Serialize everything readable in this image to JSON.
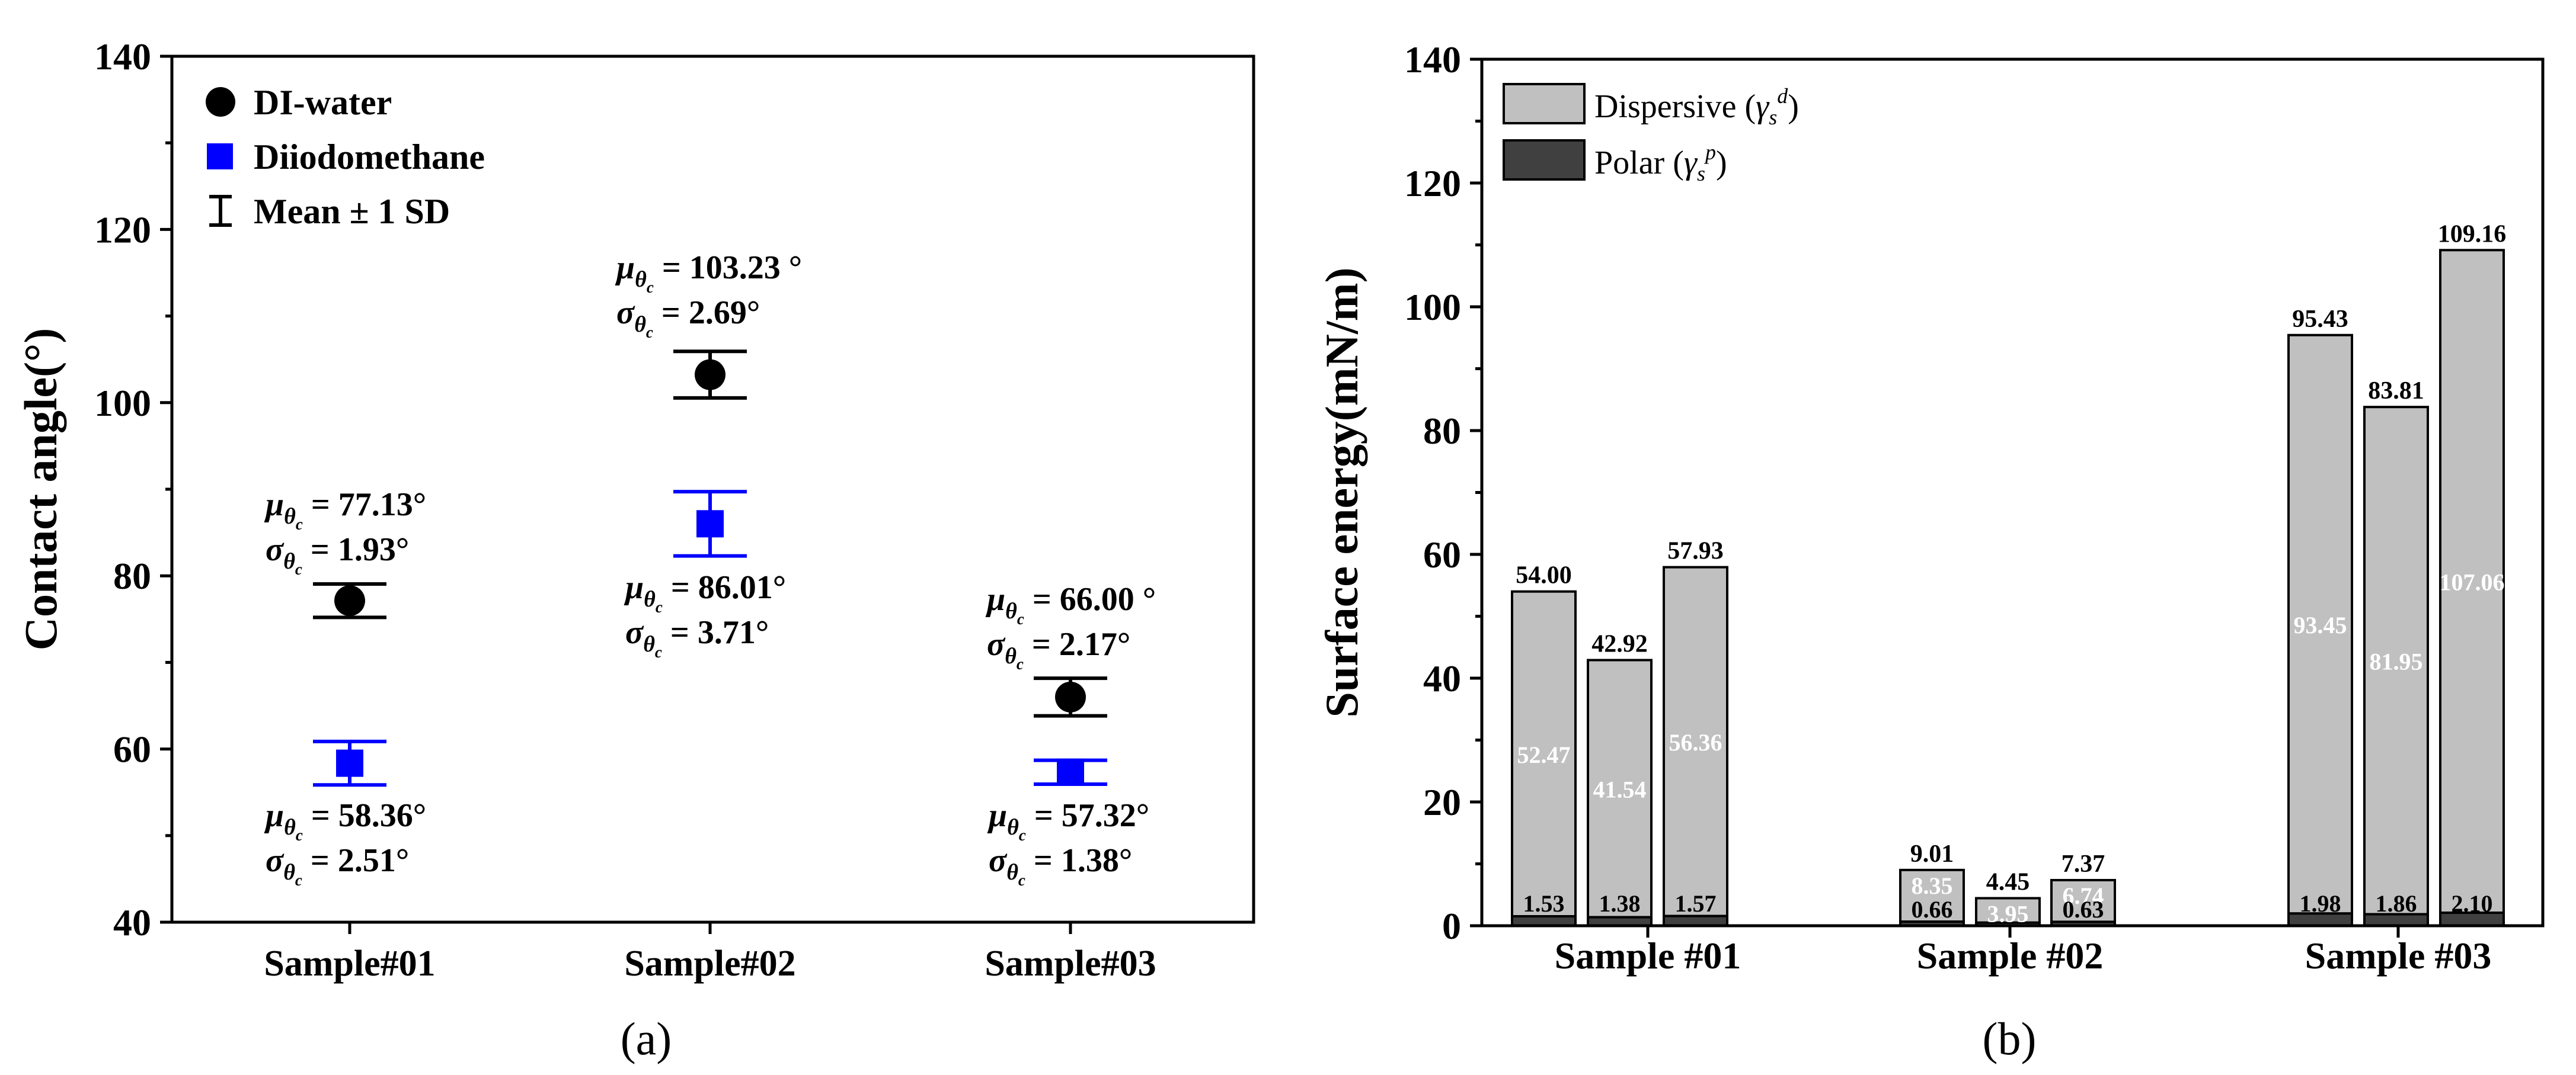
{
  "chart_data": [
    {
      "panel": "(a)",
      "type": "scatter",
      "title": "",
      "xlabel": "",
      "ylabel": "Contact angle(°)",
      "ylim": [
        40,
        140
      ],
      "yticks": [
        40,
        60,
        80,
        100,
        120,
        140
      ],
      "categories": [
        "Sample#01",
        "Sample#02",
        "Sample#03"
      ],
      "legend": {
        "position": "top-left",
        "entries": [
          "DI-water",
          "Diiodomethane",
          "Mean ± 1 SD"
        ]
      },
      "series": [
        {
          "name": "DI-water",
          "color": "#000000",
          "marker": "circle",
          "mean": [
            77.13,
            103.23,
            66.0
          ],
          "sd": [
            1.93,
            2.69,
            2.17
          ]
        },
        {
          "name": "Diiodomethane",
          "color": "#0000ff",
          "marker": "square",
          "mean": [
            58.36,
            86.01,
            57.32
          ],
          "sd": [
            2.51,
            3.71,
            1.38
          ]
        }
      ],
      "annotations": [
        {
          "mu": "77.13°",
          "sigma": "1.93°"
        },
        {
          "mu": "103.23 °",
          "sigma": "2.69°"
        },
        {
          "mu": "66.00 °",
          "sigma": "2.17°"
        },
        {
          "mu": "58.36°",
          "sigma": "2.51°"
        },
        {
          "mu": "86.01°",
          "sigma": "3.71°"
        },
        {
          "mu": "57.32°",
          "sigma": "1.38°"
        }
      ]
    },
    {
      "panel": "(b)",
      "type": "bar",
      "stacked": true,
      "title": "",
      "xlabel": "",
      "ylabel": "Surface energy(mN/m)",
      "ylim": [
        0,
        140
      ],
      "yticks": [
        0,
        20,
        40,
        60,
        80,
        100,
        120,
        140
      ],
      "categories": [
        "Sample #01",
        "Sample #02",
        "Sample #03"
      ],
      "legend": {
        "position": "top-left",
        "entries": [
          {
            "label": "Dispersive (",
            "symbol": "γ",
            "sub": "s",
            "sup": "d",
            "close": ")",
            "color": "#c0c0c0"
          },
          {
            "label": "Polar (",
            "symbol": "γ",
            "sub": "s",
            "sup": "p",
            "close": ")",
            "color": "#404040"
          }
        ]
      },
      "bars": [
        {
          "group": 0,
          "polar": 1.53,
          "dispersive": 52.47,
          "total": 54.0,
          "polar_label": "1.53",
          "disp_label": "52.47",
          "total_label": "54.00"
        },
        {
          "group": 0,
          "polar": 1.38,
          "dispersive": 41.54,
          "total": 42.92,
          "polar_label": "1.38",
          "disp_label": "41.54",
          "total_label": "42.92"
        },
        {
          "group": 0,
          "polar": 1.57,
          "dispersive": 56.36,
          "total": 57.93,
          "polar_label": "1.57",
          "disp_label": "56.36",
          "total_label": "57.93"
        },
        {
          "group": 1,
          "polar": 0.66,
          "dispersive": 8.35,
          "total": 9.01,
          "polar_label": "0.66",
          "disp_label": "8.35",
          "total_label": "9.01"
        },
        {
          "group": 1,
          "polar": 0.5,
          "dispersive": 3.95,
          "total": 4.45,
          "polar_label": "",
          "disp_label": "3.95",
          "total_label": "4.45"
        },
        {
          "group": 1,
          "polar": 0.63,
          "dispersive": 6.74,
          "total": 7.37,
          "polar_label": "0.63",
          "disp_label": "6.74",
          "total_label": "7.37"
        },
        {
          "group": 2,
          "polar": 1.98,
          "dispersive": 93.45,
          "total": 95.43,
          "polar_label": "1.98",
          "disp_label": "93.45",
          "total_label": "95.43"
        },
        {
          "group": 2,
          "polar": 1.86,
          "dispersive": 81.95,
          "total": 83.81,
          "polar_label": "1.86",
          "disp_label": "81.95",
          "total_label": "83.81"
        },
        {
          "group": 2,
          "polar": 2.1,
          "dispersive": 107.06,
          "total": 109.16,
          "polar_label": "2.10",
          "disp_label": "107.06",
          "total_label": "109.16"
        }
      ],
      "colors": {
        "dispersive": "#c0c0c0",
        "polar": "#404040",
        "inside_label": "#ffffff"
      }
    }
  ],
  "panel_labels": [
    "(a)",
    "(b)"
  ]
}
